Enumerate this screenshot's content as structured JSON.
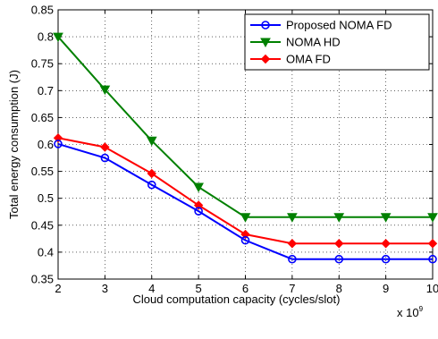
{
  "chart_data": {
    "type": "line",
    "title": "",
    "xlabel": "Cloud computation capacity (cycles/slot)",
    "ylabel": "Total energy consumption (J)",
    "x_multiplier_label": "x 10",
    "x_multiplier_exponent": "9",
    "x": [
      2,
      3,
      4,
      5,
      6,
      7,
      8,
      9,
      10
    ],
    "xlim": [
      2,
      10
    ],
    "ylim": [
      0.35,
      0.85
    ],
    "xticks": [
      "2",
      "3",
      "4",
      "5",
      "6",
      "7",
      "8",
      "9",
      "10"
    ],
    "yticks": [
      "0.35",
      "0.4",
      "0.45",
      "0.5",
      "0.55",
      "0.6",
      "0.65",
      "0.7",
      "0.75",
      "0.8",
      "0.85"
    ],
    "grid": true,
    "legend_position": "top-right",
    "series": [
      {
        "name": "Proposed NOMA FD",
        "color": "#0000ff",
        "marker": "circle",
        "values": [
          0.601,
          0.575,
          0.525,
          0.476,
          0.422,
          0.387,
          0.387,
          0.387,
          0.387
        ]
      },
      {
        "name": "NOMA HD",
        "color": "#008000",
        "marker": "triangle-down",
        "values": [
          0.8,
          0.702,
          0.607,
          0.521,
          0.465,
          0.465,
          0.465,
          0.465,
          0.465
        ]
      },
      {
        "name": "OMA FD",
        "color": "#ff0000",
        "marker": "diamond",
        "values": [
          0.612,
          0.595,
          0.546,
          0.487,
          0.433,
          0.416,
          0.416,
          0.416,
          0.416
        ]
      }
    ]
  }
}
